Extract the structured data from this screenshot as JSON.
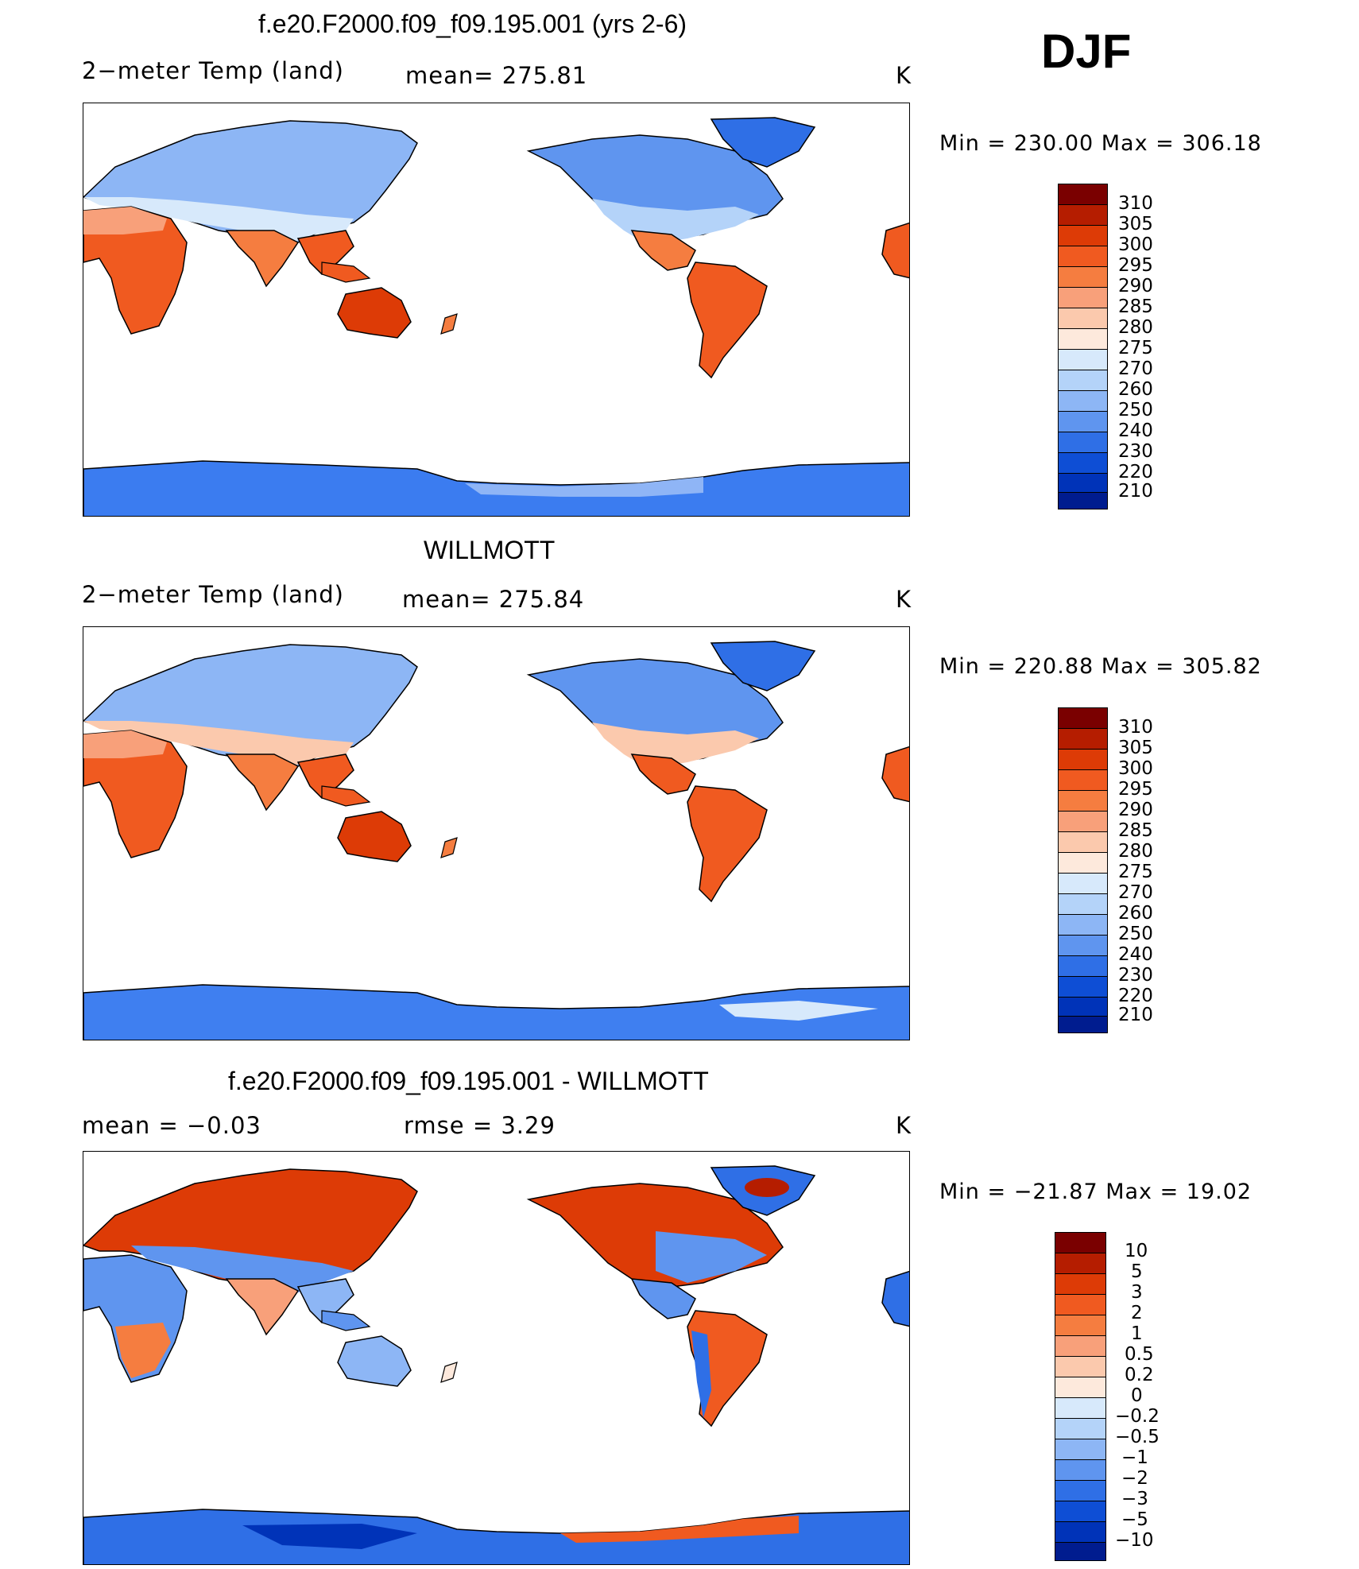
{
  "season": "DJF",
  "panels": [
    {
      "id": "model",
      "title": "f.e20.F2000.f09_f09.195.001 (yrs 2-6)",
      "left_label": "2−meter Temp (land)",
      "center_label": "mean= 275.81",
      "right_label": "K",
      "minmax": "Min = 230.00 Max = 306.18",
      "colorbar": {
        "labels": [
          "310",
          "305",
          "300",
          "295",
          "290",
          "285",
          "280",
          "275",
          "270",
          "260",
          "250",
          "240",
          "230",
          "220",
          "210"
        ],
        "colors": [
          "#7a0000",
          "#b51d00",
          "#dd3b06",
          "#f05a20",
          "#f57d40",
          "#f8a07a",
          "#fbc9ad",
          "#fde9dc",
          "#d7e9fb",
          "#b4d3f9",
          "#8db6f5",
          "#5f95ef",
          "#2f6fe6",
          "#0e4ed5",
          "#0033b8",
          "#001c8f"
        ]
      },
      "map": {
        "colors": {
          "antarctica": "#3b7cf0",
          "sea_ice_edge": "#8fb5f6"
        }
      }
    },
    {
      "id": "obs",
      "title": "WILLMOTT",
      "left_label": "2−meter Temp (land)",
      "center_label": "mean= 275.84",
      "right_label": "K",
      "minmax": "Min = 220.88 Max = 305.82",
      "colorbar": {
        "labels": [
          "310",
          "305",
          "300",
          "295",
          "290",
          "285",
          "280",
          "275",
          "270",
          "260",
          "250",
          "240",
          "230",
          "220",
          "210"
        ],
        "colors": [
          "#7a0000",
          "#b51d00",
          "#dd3b06",
          "#f05a20",
          "#f57d40",
          "#f8a07a",
          "#fbc9ad",
          "#fde9dc",
          "#d7e9fb",
          "#b4d3f9",
          "#8db6f5",
          "#5f95ef",
          "#2f6fe6",
          "#0e4ed5",
          "#0033b8",
          "#001c8f"
        ]
      },
      "map": {
        "colors": {
          "antarctica": "#3f7ff0",
          "sea_ice_edge": "#8fb5f6"
        }
      }
    },
    {
      "id": "diff",
      "title": "f.e20.F2000.f09_f09.195.001 - WILLMOTT",
      "left_label": "mean = −0.03",
      "center_label": "rmse = 3.29",
      "right_label": "K",
      "minmax": "Min = −21.87 Max = 19.02",
      "colorbar": {
        "labels": [
          "10",
          "5",
          "3",
          "2",
          "1",
          "0.5",
          "0.2",
          "0",
          "−0.2",
          "−0.5",
          "−1",
          "−2",
          "−3",
          "−5",
          "−10"
        ],
        "colors": [
          "#7a0000",
          "#b51d00",
          "#dd3b06",
          "#f05a20",
          "#f57d40",
          "#f8a07a",
          "#fbc9ad",
          "#fde9dc",
          "#d7e9fb",
          "#b4d3f9",
          "#8db6f5",
          "#5f95ef",
          "#2f6fe6",
          "#0e4ed5",
          "#0033b8",
          "#001c8f"
        ]
      },
      "map": {
        "colors": {
          "antarctica": "#2f6fe6",
          "sea_ice_edge": "#f05a20"
        }
      }
    }
  ]
}
